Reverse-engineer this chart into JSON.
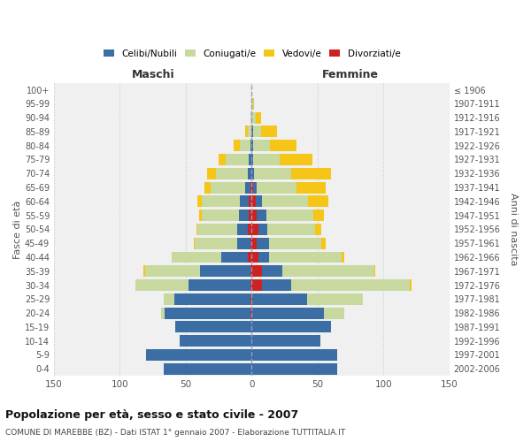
{
  "age_groups": [
    "0-4",
    "5-9",
    "10-14",
    "15-19",
    "20-24",
    "25-29",
    "30-34",
    "35-39",
    "40-44",
    "45-49",
    "50-54",
    "55-59",
    "60-64",
    "65-69",
    "70-74",
    "75-79",
    "80-84",
    "85-89",
    "90-94",
    "95-99",
    "100+"
  ],
  "birth_years": [
    "2002-2006",
    "1997-2001",
    "1992-1996",
    "1987-1991",
    "1982-1986",
    "1977-1981",
    "1972-1976",
    "1967-1971",
    "1962-1966",
    "1957-1961",
    "1952-1956",
    "1947-1951",
    "1942-1946",
    "1937-1941",
    "1932-1936",
    "1927-1931",
    "1922-1926",
    "1917-1921",
    "1912-1916",
    "1907-1911",
    "≤ 1906"
  ],
  "maschi": {
    "celibi": [
      67,
      80,
      55,
      58,
      65,
      58,
      47,
      38,
      20,
      10,
      8,
      8,
      7,
      4,
      3,
      2,
      1,
      0,
      0,
      0,
      0
    ],
    "coniugati": [
      0,
      0,
      0,
      0,
      3,
      8,
      40,
      42,
      38,
      32,
      30,
      28,
      29,
      26,
      24,
      18,
      8,
      3,
      1,
      0,
      0
    ],
    "vedovi": [
      0,
      0,
      0,
      0,
      0,
      0,
      0,
      1,
      0,
      1,
      1,
      2,
      3,
      5,
      7,
      5,
      5,
      2,
      0,
      0,
      0
    ],
    "divorziati": [
      0,
      0,
      0,
      0,
      1,
      1,
      1,
      1,
      3,
      1,
      3,
      2,
      2,
      1,
      0,
      0,
      0,
      0,
      0,
      0,
      0
    ]
  },
  "femmine": {
    "nubili": [
      65,
      65,
      52,
      60,
      55,
      42,
      22,
      15,
      8,
      9,
      7,
      7,
      5,
      3,
      2,
      1,
      1,
      1,
      0,
      0,
      0
    ],
    "coniugate": [
      0,
      0,
      0,
      0,
      15,
      42,
      90,
      70,
      55,
      40,
      36,
      36,
      35,
      30,
      28,
      20,
      13,
      6,
      3,
      1,
      0
    ],
    "vedove": [
      0,
      0,
      0,
      0,
      0,
      0,
      1,
      1,
      2,
      3,
      5,
      8,
      15,
      22,
      30,
      25,
      20,
      12,
      4,
      1,
      0
    ],
    "divorziate": [
      0,
      0,
      0,
      0,
      0,
      0,
      8,
      8,
      5,
      4,
      5,
      4,
      3,
      1,
      0,
      0,
      0,
      0,
      0,
      0,
      0
    ]
  },
  "colors": {
    "celibi": "#3A6EA5",
    "coniugati": "#C8D9A0",
    "vedovi": "#F5C518",
    "divorziati": "#CC2222"
  },
  "xlim": 150,
  "title": "Popolazione per età, sesso e stato civile - 2007",
  "subtitle": "COMUNE DI MAREBBE (BZ) - Dati ISTAT 1° gennaio 2007 - Elaborazione TUTTITALIA.IT",
  "xlabel_left": "Maschi",
  "xlabel_right": "Femmine",
  "ylabel_left": "Fasce di età",
  "ylabel_right": "Anni di nascita",
  "bg_color": "#f0f0f0",
  "grid_color": "#cccccc",
  "xticks": [
    150,
    100,
    50,
    0,
    50,
    100,
    150
  ]
}
